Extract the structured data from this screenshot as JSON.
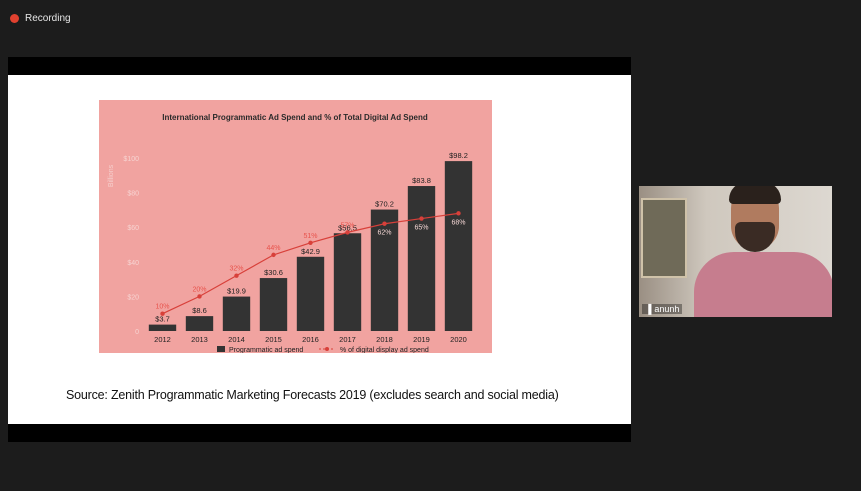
{
  "recording": {
    "label": "Recording"
  },
  "participant": {
    "name": "anunh"
  },
  "slide": {
    "source": "Source: Zenith Programmatic Marketing Forecasts 2019 (excludes search and social media)"
  },
  "chart_data": {
    "type": "bar",
    "title": "International Programmatic Ad Spend and % of Total Digital Ad Spend",
    "ylabel": "Billions",
    "categories": [
      "2012",
      "2013",
      "2014",
      "2015",
      "2016",
      "2017",
      "2018",
      "2019",
      "2020"
    ],
    "ylim": [
      0,
      100
    ],
    "yticks": [
      "0",
      "$20",
      "$40",
      "$60",
      "$80",
      "$100"
    ],
    "series": [
      {
        "name": "Programmatic ad spend",
        "type": "bar",
        "values": [
          3.7,
          8.6,
          19.9,
          30.6,
          42.9,
          56.5,
          70.2,
          83.8,
          98.2
        ],
        "labels": [
          "$3.7",
          "$8.6",
          "$19.9",
          "$30.6",
          "$42.9",
          "$56.5",
          "$70.2",
          "$83.8",
          "$98.2"
        ],
        "color": "#333333"
      },
      {
        "name": "% of digital display ad spend",
        "type": "line",
        "values": [
          10,
          20,
          32,
          44,
          51,
          57,
          62,
          65,
          68
        ],
        "labels": [
          "10%",
          "20%",
          "32%",
          "44%",
          "51%",
          "57%",
          "62%",
          "65%",
          "68%"
        ],
        "color": "#d8403a"
      }
    ],
    "legend_position": "bottom"
  }
}
